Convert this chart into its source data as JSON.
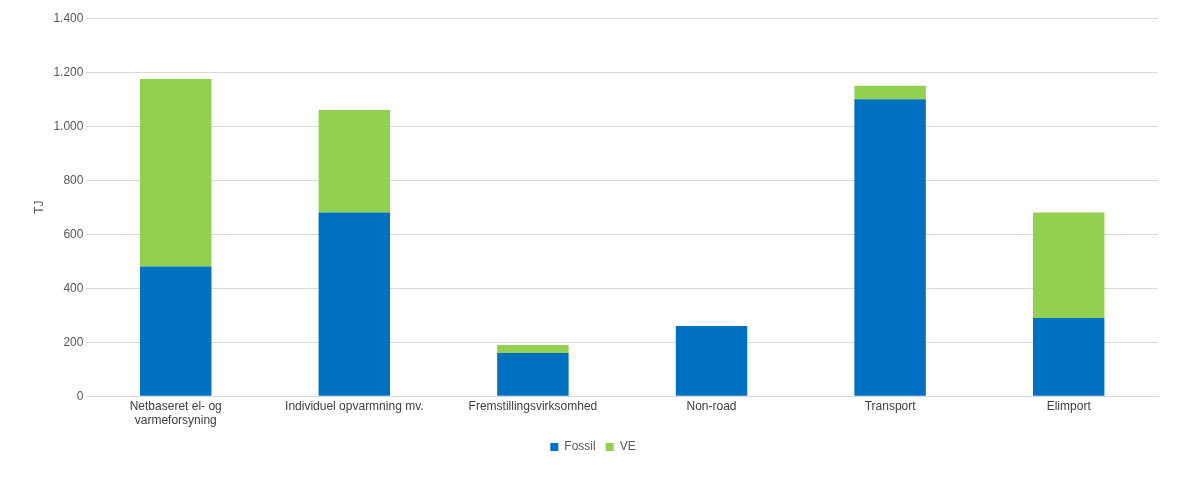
{
  "chart_data": {
    "type": "bar",
    "stacked": true,
    "ylabel": "TJ",
    "categories": [
      "Netbaseret el- og varmeforsyning",
      "Individuel opvarmning mv.",
      "Fremstillingsvirksomhed",
      "Non-road",
      "Transport",
      "Elimport"
    ],
    "series": [
      {
        "name": "Fossil",
        "color": "#0070c0",
        "values": [
          480,
          680,
          160,
          260,
          1100,
          290
        ]
      },
      {
        "name": "VE",
        "color": "#92d050",
        "values": [
          695,
          380,
          30,
          0,
          50,
          390
        ]
      }
    ],
    "ylim": [
      0,
      1400
    ],
    "yticks": [
      {
        "value": 0,
        "label": "0"
      },
      {
        "value": 200,
        "label": "200"
      },
      {
        "value": 400,
        "label": "400"
      },
      {
        "value": 600,
        "label": "600"
      },
      {
        "value": 800,
        "label": "800"
      },
      {
        "value": 1000,
        "label": "1.000"
      },
      {
        "value": 1200,
        "label": "1.200"
      },
      {
        "value": 1400,
        "label": "1.400"
      }
    ],
    "grid": "y",
    "legend": "bottom"
  }
}
